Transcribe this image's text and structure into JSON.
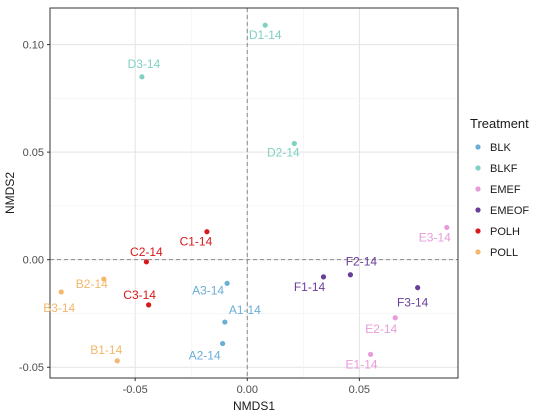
{
  "chart_data": {
    "type": "scatter",
    "title": "",
    "xlabel": "NMDS1",
    "ylabel": "NMDS2",
    "xlim": [
      -0.088,
      0.094
    ],
    "ylim": [
      -0.055,
      0.117
    ],
    "x_ticks": [
      {
        "value": -0.05,
        "label": "-0.05"
      },
      {
        "value": 0.0,
        "label": "0.00"
      },
      {
        "value": 0.05,
        "label": "0.05"
      }
    ],
    "y_ticks": [
      {
        "value": -0.05,
        "label": "-0.05"
      },
      {
        "value": 0.0,
        "label": "0.00"
      },
      {
        "value": 0.05,
        "label": "0.05"
      },
      {
        "value": 0.1,
        "label": "0.10"
      }
    ],
    "reference_lines": {
      "x": 0,
      "y": 0,
      "style": "dashed"
    },
    "grid": true,
    "legend": {
      "title": "Treatment",
      "position": "right"
    },
    "series": [
      {
        "name": "BLK",
        "color": "#6BAED6",
        "points": [
          {
            "label": "A1-14",
            "x": -0.01,
            "y": -0.029
          },
          {
            "label": "A2-14",
            "x": -0.011,
            "y": -0.039
          },
          {
            "label": "A3-14",
            "x": -0.009,
            "y": -0.011
          }
        ]
      },
      {
        "name": "BLKF",
        "color": "#7FD1C1",
        "points": [
          {
            "label": "D1-14",
            "x": 0.008,
            "y": 0.109
          },
          {
            "label": "D2-14",
            "x": 0.021,
            "y": 0.054
          },
          {
            "label": "D3-14",
            "x": -0.047,
            "y": 0.085
          }
        ]
      },
      {
        "name": "EMEF",
        "color": "#E89BDB",
        "points": [
          {
            "label": "E1-14",
            "x": 0.055,
            "y": -0.044
          },
          {
            "label": "E2-14",
            "x": 0.066,
            "y": -0.027
          },
          {
            "label": "E3-14",
            "x": 0.089,
            "y": 0.015
          }
        ]
      },
      {
        "name": "EMEOF",
        "color": "#6A3D9A",
        "points": [
          {
            "label": "F1-14",
            "x": 0.034,
            "y": -0.008
          },
          {
            "label": "F2-14",
            "x": 0.046,
            "y": -0.007
          },
          {
            "label": "F3-14",
            "x": 0.076,
            "y": -0.013
          }
        ]
      },
      {
        "name": "POLH",
        "color": "#D7191C",
        "points": [
          {
            "label": "C1-14",
            "x": -0.018,
            "y": 0.013
          },
          {
            "label": "C2-14",
            "x": -0.045,
            "y": -0.001
          },
          {
            "label": "C3-14",
            "x": -0.044,
            "y": -0.021
          }
        ]
      },
      {
        "name": "POLL",
        "color": "#F4B76B",
        "points": [
          {
            "label": "B1-14",
            "x": -0.058,
            "y": -0.047
          },
          {
            "label": "B2-14",
            "x": -0.064,
            "y": -0.009
          },
          {
            "label": "B3-14",
            "x": -0.083,
            "y": -0.015
          }
        ]
      }
    ]
  }
}
